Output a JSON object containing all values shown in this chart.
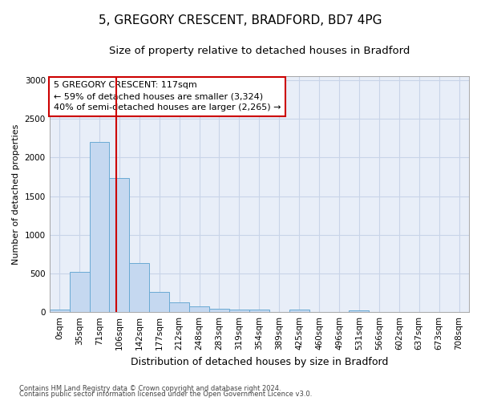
{
  "title": "5, GREGORY CRESCENT, BRADFORD, BD7 4PG",
  "subtitle": "Size of property relative to detached houses in Bradford",
  "xlabel": "Distribution of detached houses by size in Bradford",
  "ylabel": "Number of detached properties",
  "footnote1": "Contains HM Land Registry data © Crown copyright and database right 2024.",
  "footnote2": "Contains public sector information licensed under the Open Government Licence v3.0.",
  "bin_labels": [
    "0sqm",
    "35sqm",
    "71sqm",
    "106sqm",
    "142sqm",
    "177sqm",
    "212sqm",
    "248sqm",
    "283sqm",
    "319sqm",
    "354sqm",
    "389sqm",
    "425sqm",
    "460sqm",
    "496sqm",
    "531sqm",
    "566sqm",
    "602sqm",
    "637sqm",
    "673sqm",
    "708sqm"
  ],
  "bar_values": [
    30,
    520,
    2200,
    1740,
    640,
    260,
    130,
    75,
    45,
    30,
    30,
    0,
    30,
    0,
    0,
    20,
    0,
    0,
    0,
    0,
    0
  ],
  "bar_color": "#c5d8f0",
  "bar_edge_color": "#6aaad4",
  "grid_color": "#c8d4e8",
  "bg_color": "#e8eef8",
  "ylim": [
    0,
    3050
  ],
  "yticks": [
    0,
    500,
    1000,
    1500,
    2000,
    2500,
    3000
  ],
  "property_size": 117,
  "red_line_color": "#cc0000",
  "annotation_line1": "5 GREGORY CRESCENT: 117sqm",
  "annotation_line2": "← 59% of detached houses are smaller (3,324)",
  "annotation_line3": "40% of semi-detached houses are larger (2,265) →",
  "title_fontsize": 11,
  "subtitle_fontsize": 9.5,
  "xlabel_fontsize": 9,
  "ylabel_fontsize": 8,
  "tick_fontsize": 7.5,
  "annot_fontsize": 8,
  "footnote_fontsize": 6
}
